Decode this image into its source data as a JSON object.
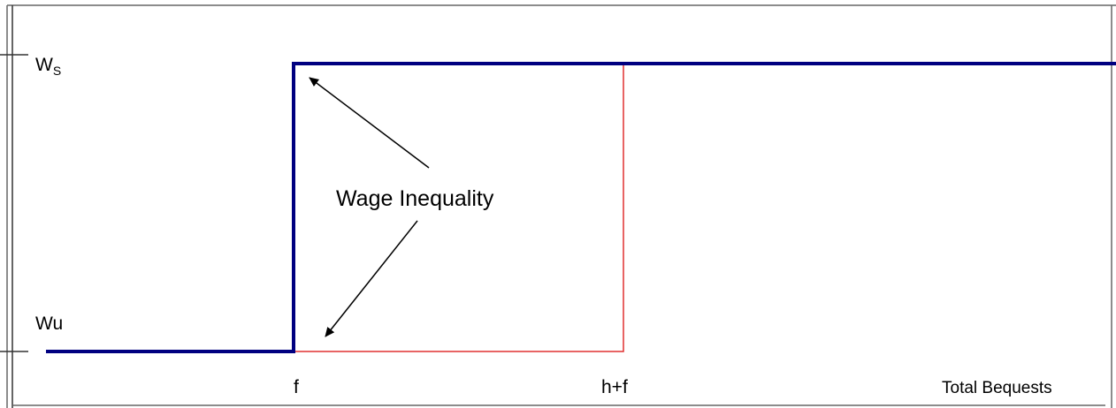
{
  "labels": {
    "w_s": {
      "main": "W",
      "sub": "S"
    },
    "w_u": "Wu",
    "f": "f",
    "h_plus_f": "h+f",
    "x_axis": "Total Bequests",
    "annotation": "Wage Inequality"
  }
}
